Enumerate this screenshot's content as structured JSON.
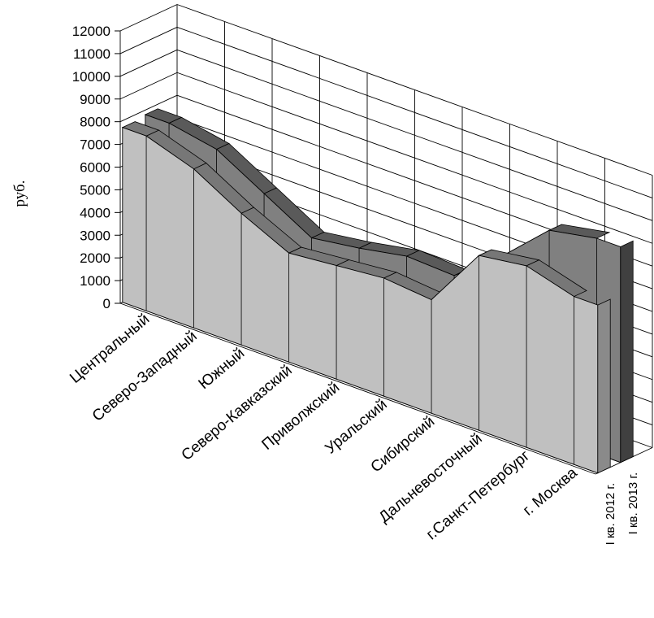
{
  "chart_data": {
    "type": "area",
    "title": "",
    "xlabel": "",
    "ylabel": "руб.",
    "ylim": [
      0,
      12000
    ],
    "yticks": [
      0,
      1000,
      2000,
      3000,
      4000,
      5000,
      6000,
      7000,
      8000,
      9000,
      10000,
      11000,
      12000
    ],
    "categories": [
      "Центральный",
      "Северо-Западный",
      "Южный",
      "Северо-Кавказский",
      "Приволжский",
      "Уральский",
      "Сибирский",
      "Дальневосточный",
      "г.Санкт-Петербург",
      "г. Москва"
    ],
    "series": [
      {
        "name": "I кв. 2012 г.",
        "values": [
          7700,
          7000,
          5800,
          4800,
          5000,
          5200,
          5000,
          7700,
          8000,
          7400
        ]
      },
      {
        "name": "I кв. 2013 г.",
        "values": [
          7800,
          7400,
          6200,
          5000,
          5300,
          5700,
          5600,
          7200,
          9100,
          9500
        ]
      }
    ],
    "colors": {
      "front_fill": "#c0c0c0",
      "back_fill": "#808080",
      "back_side": "#404040",
      "floor": "#8c8c8c"
    }
  }
}
